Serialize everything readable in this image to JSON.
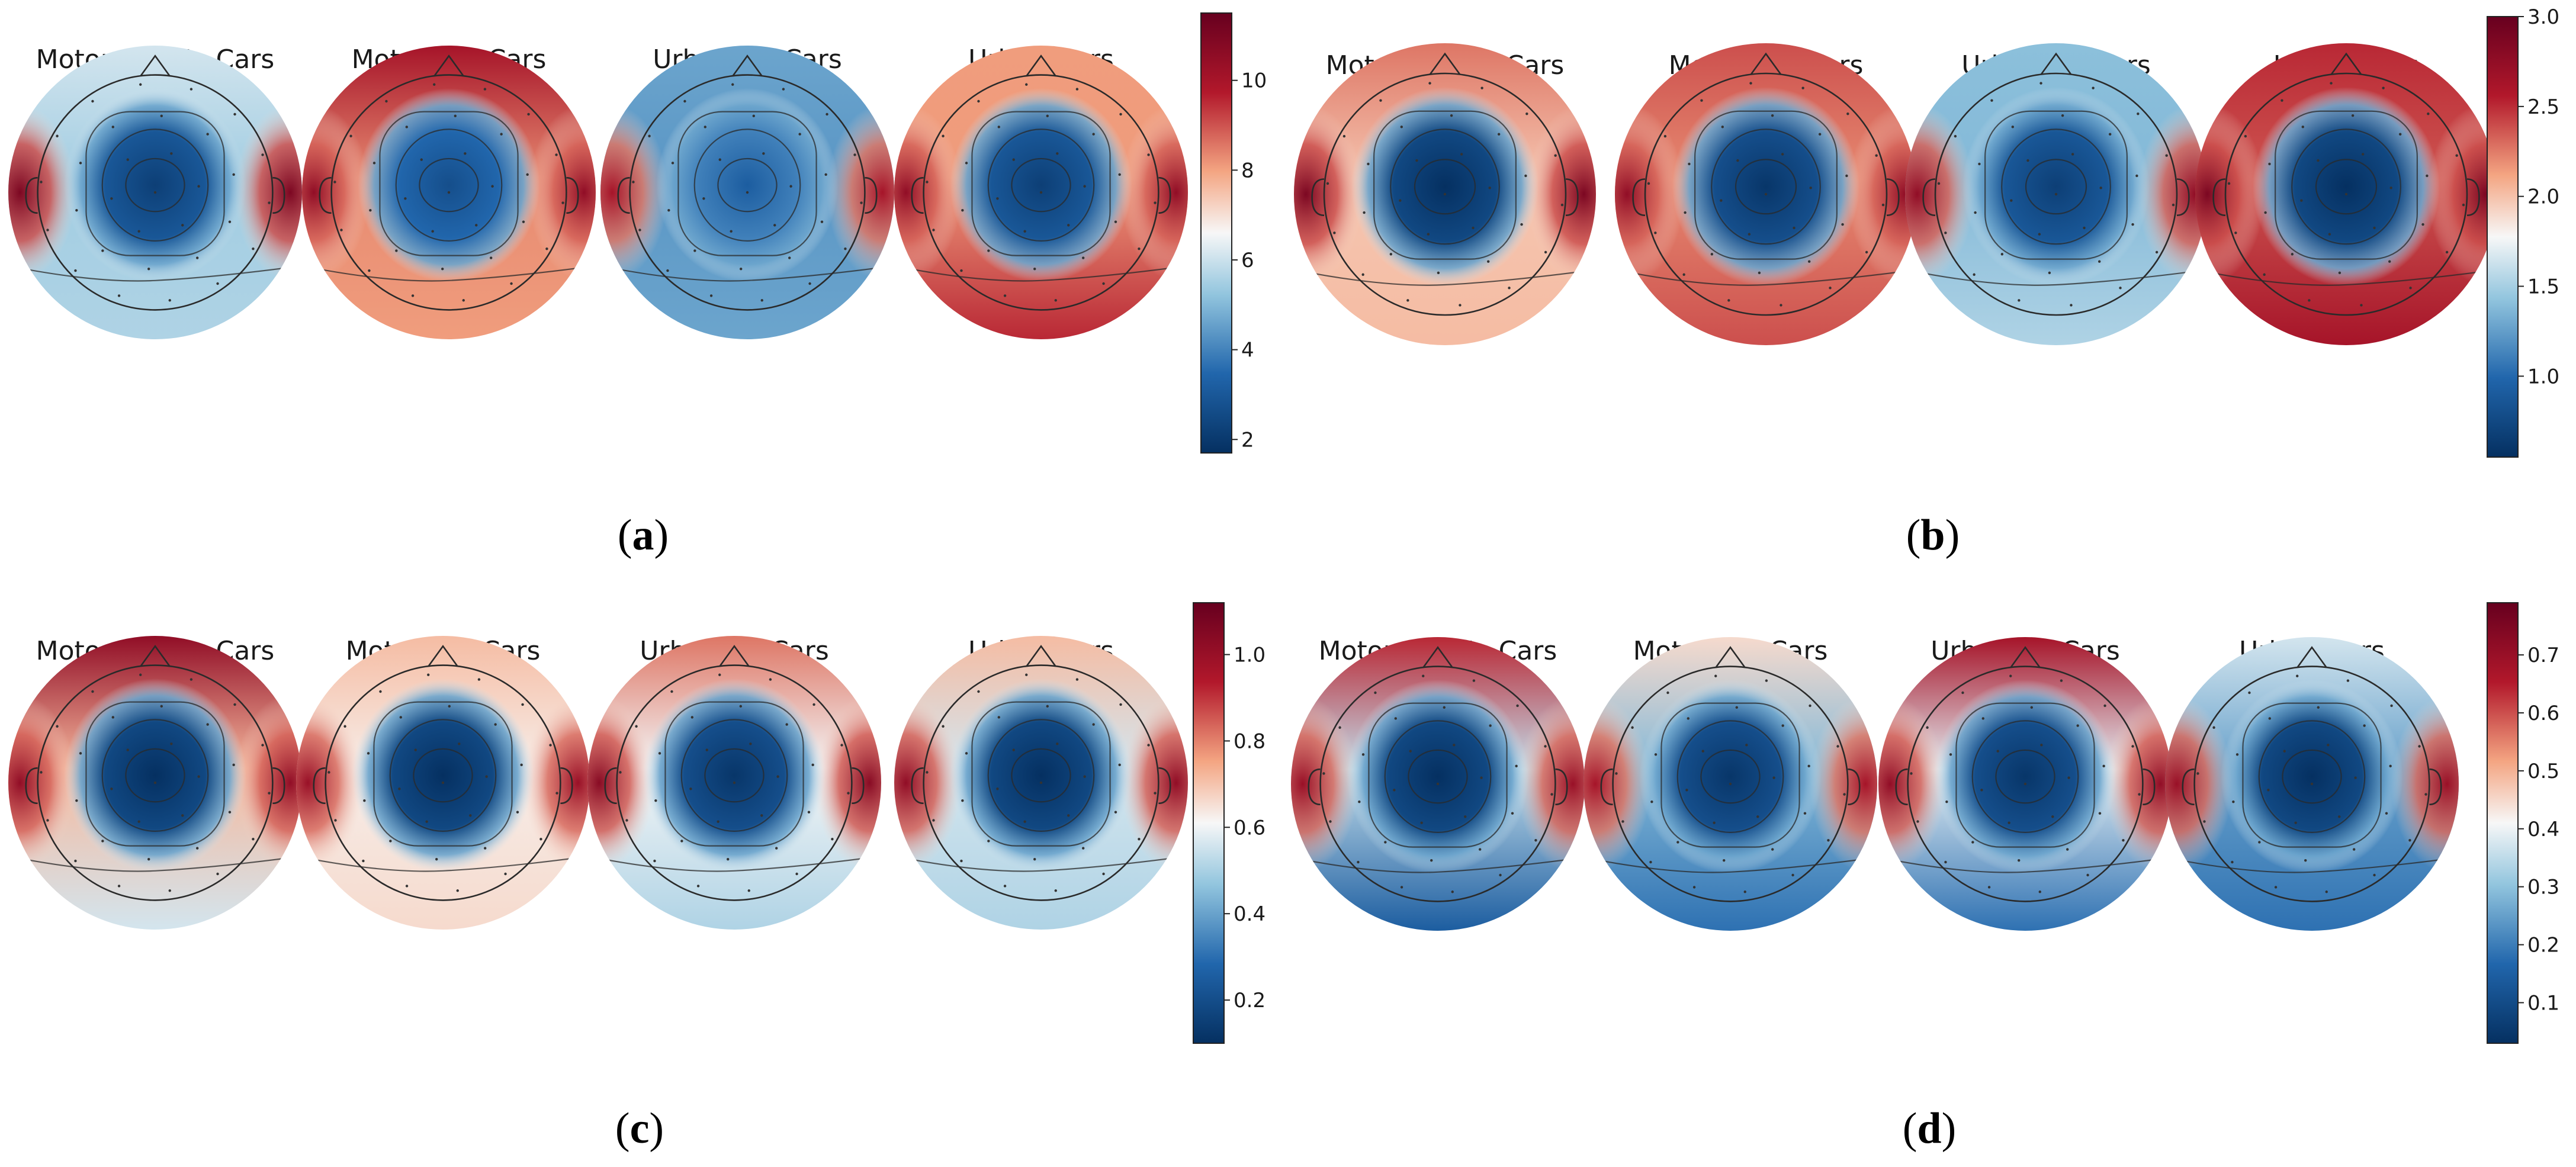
{
  "figure": {
    "colormap": "RdBu_r",
    "colors": {
      "low": "#053061",
      "low_mid": "#2166ac",
      "mid_low": "#92c5de",
      "mid": "#f7f7f7",
      "mid_high": "#f4a582",
      "high_mid": "#b2182b",
      "high": "#67001f",
      "outline": "#2a2a2a"
    },
    "conditions": [
      "Motorway No Cars",
      "Motorway Cars",
      "Urban No Cars",
      "Urban Cars"
    ],
    "panels": [
      {
        "letter": "a",
        "colorbar": {
          "min": 1.7,
          "max": 11.5,
          "ticks": [
            {
              "v": 2,
              "t": "2"
            },
            {
              "v": 4,
              "t": "4"
            },
            {
              "v": 6,
              "t": "6"
            },
            {
              "v": 8,
              "t": "8"
            },
            {
              "v": 10,
              "t": "10"
            }
          ]
        },
        "maps": [
          {
            "title": "Motorway No Cars",
            "center_level": 0.05,
            "side_level": 0.95,
            "front_level": 0.45,
            "back_level": 0.4
          },
          {
            "title": "Motorway Cars",
            "center_level": 0.1,
            "side_level": 0.9,
            "front_level": 0.85,
            "back_level": 0.65
          },
          {
            "title": "Urban No Cars",
            "center_level": 0.15,
            "side_level": 0.85,
            "front_level": 0.3,
            "back_level": 0.3
          },
          {
            "title": "Urban Cars",
            "center_level": 0.05,
            "side_level": 0.9,
            "front_level": 0.65,
            "back_level": 0.8
          }
        ]
      },
      {
        "letter": "b",
        "colorbar": {
          "min": 0.55,
          "max": 3.0,
          "ticks": [
            {
              "v": 1.0,
              "t": "1.0"
            },
            {
              "v": 1.5,
              "t": "1.5"
            },
            {
              "v": 2.0,
              "t": "2.0"
            },
            {
              "v": 2.5,
              "t": "2.5"
            },
            {
              "v": 3.0,
              "t": "3.0"
            }
          ]
        },
        "maps": [
          {
            "title": "Motorway No Cars",
            "center_level": 0.0,
            "side_level": 0.95,
            "front_level": 0.7,
            "back_level": 0.6
          },
          {
            "title": "Motorway Cars",
            "center_level": 0.02,
            "side_level": 0.9,
            "front_level": 0.75,
            "back_level": 0.75
          },
          {
            "title": "Urban No Cars",
            "center_level": 0.05,
            "side_level": 0.9,
            "front_level": 0.35,
            "back_level": 0.4
          },
          {
            "title": "Urban Cars",
            "center_level": 0.0,
            "side_level": 0.95,
            "front_level": 0.8,
            "back_level": 0.85
          }
        ]
      },
      {
        "letter": "c",
        "colorbar": {
          "min": 0.1,
          "max": 1.12,
          "ticks": [
            {
              "v": 0.2,
              "t": "0.2"
            },
            {
              "v": 0.4,
              "t": "0.4"
            },
            {
              "v": 0.6,
              "t": "0.6"
            },
            {
              "v": 0.8,
              "t": "0.8"
            },
            {
              "v": 1.0,
              "t": "1.0"
            }
          ]
        },
        "maps": [
          {
            "title": "Motorway No Cars",
            "center_level": 0.0,
            "side_level": 0.9,
            "front_level": 0.9,
            "back_level": 0.45
          },
          {
            "title": "Motorway Cars",
            "center_level": 0.0,
            "side_level": 0.88,
            "front_level": 0.6,
            "back_level": 0.55
          },
          {
            "title": "Urban No Cars",
            "center_level": 0.02,
            "side_level": 0.92,
            "front_level": 0.7,
            "back_level": 0.4
          },
          {
            "title": "Urban Cars",
            "center_level": 0.0,
            "side_level": 0.9,
            "front_level": 0.6,
            "back_level": 0.4
          }
        ]
      },
      {
        "letter": "d",
        "colorbar": {
          "min": 0.03,
          "max": 0.79,
          "ticks": [
            {
              "v": 0.1,
              "t": "0.1"
            },
            {
              "v": 0.2,
              "t": "0.2"
            },
            {
              "v": 0.3,
              "t": "0.3"
            },
            {
              "v": 0.4,
              "t": "0.4"
            },
            {
              "v": 0.5,
              "t": "0.5"
            },
            {
              "v": 0.6,
              "t": "0.6"
            },
            {
              "v": 0.7,
              "t": "0.7"
            }
          ]
        },
        "maps": [
          {
            "title": "Motorway No Cars",
            "center_level": 0.0,
            "side_level": 0.88,
            "front_level": 0.8,
            "back_level": 0.15
          },
          {
            "title": "Motorway Cars",
            "center_level": 0.02,
            "side_level": 0.85,
            "front_level": 0.55,
            "back_level": 0.2
          },
          {
            "title": "Urban No Cars",
            "center_level": 0.02,
            "side_level": 0.9,
            "front_level": 0.85,
            "back_level": 0.2
          },
          {
            "title": "Urban Cars",
            "center_level": 0.0,
            "side_level": 0.88,
            "front_level": 0.45,
            "back_level": 0.2
          }
        ]
      }
    ]
  }
}
